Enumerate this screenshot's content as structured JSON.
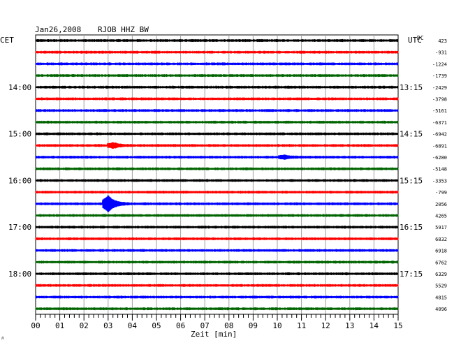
{
  "header": {
    "date": "Jan26,2008",
    "station": "RJOB HHZ BW",
    "left_tz": "CET",
    "right_tz": "UTC",
    "dc_label": "DC"
  },
  "chart_data": {
    "type": "line",
    "title": "Jan26,2008  RJOB HHZ BW",
    "xlabel": "Zeit [min]",
    "xlim": [
      0,
      15
    ],
    "x_ticks": [
      "00",
      "01",
      "02",
      "03",
      "04",
      "05",
      "06",
      "07",
      "08",
      "09",
      "10",
      "11",
      "12",
      "13",
      "14",
      "15"
    ],
    "grid": true,
    "trace_colors": [
      "#000000",
      "#ff0000",
      "#0000ff",
      "#006400"
    ],
    "left_hour_labels": [
      {
        "trace": 4,
        "label": "14:00"
      },
      {
        "trace": 8,
        "label": "15:00"
      },
      {
        "trace": 12,
        "label": "16:00"
      },
      {
        "trace": 16,
        "label": "17:00"
      },
      {
        "trace": 20,
        "label": "18:00"
      }
    ],
    "right_hour_labels": [
      {
        "trace": 4,
        "label": "13:15"
      },
      {
        "trace": 8,
        "label": "14:15"
      },
      {
        "trace": 12,
        "label": "15:15"
      },
      {
        "trace": 16,
        "label": "16:15"
      },
      {
        "trace": 20,
        "label": "17:15"
      }
    ],
    "dc_offsets": [
      "423",
      "-931",
      "-1224",
      "-1739",
      "-2429",
      "-3798",
      "-5161",
      "-6371",
      "-6942",
      "-6891",
      "-6280",
      "-5148",
      "-3353",
      "-799",
      "2056",
      "4265",
      "5917",
      "6832",
      "6918",
      "6762",
      "6329",
      "5529",
      "4815",
      "4096"
    ],
    "events": [
      {
        "trace": 9,
        "minute": 3.2,
        "amplitude": 0.3
      },
      {
        "trace": 14,
        "minute": 3.0,
        "amplitude": 1.0
      },
      {
        "trace": 10,
        "minute": 10.3,
        "amplitude": 0.2
      }
    ]
  }
}
